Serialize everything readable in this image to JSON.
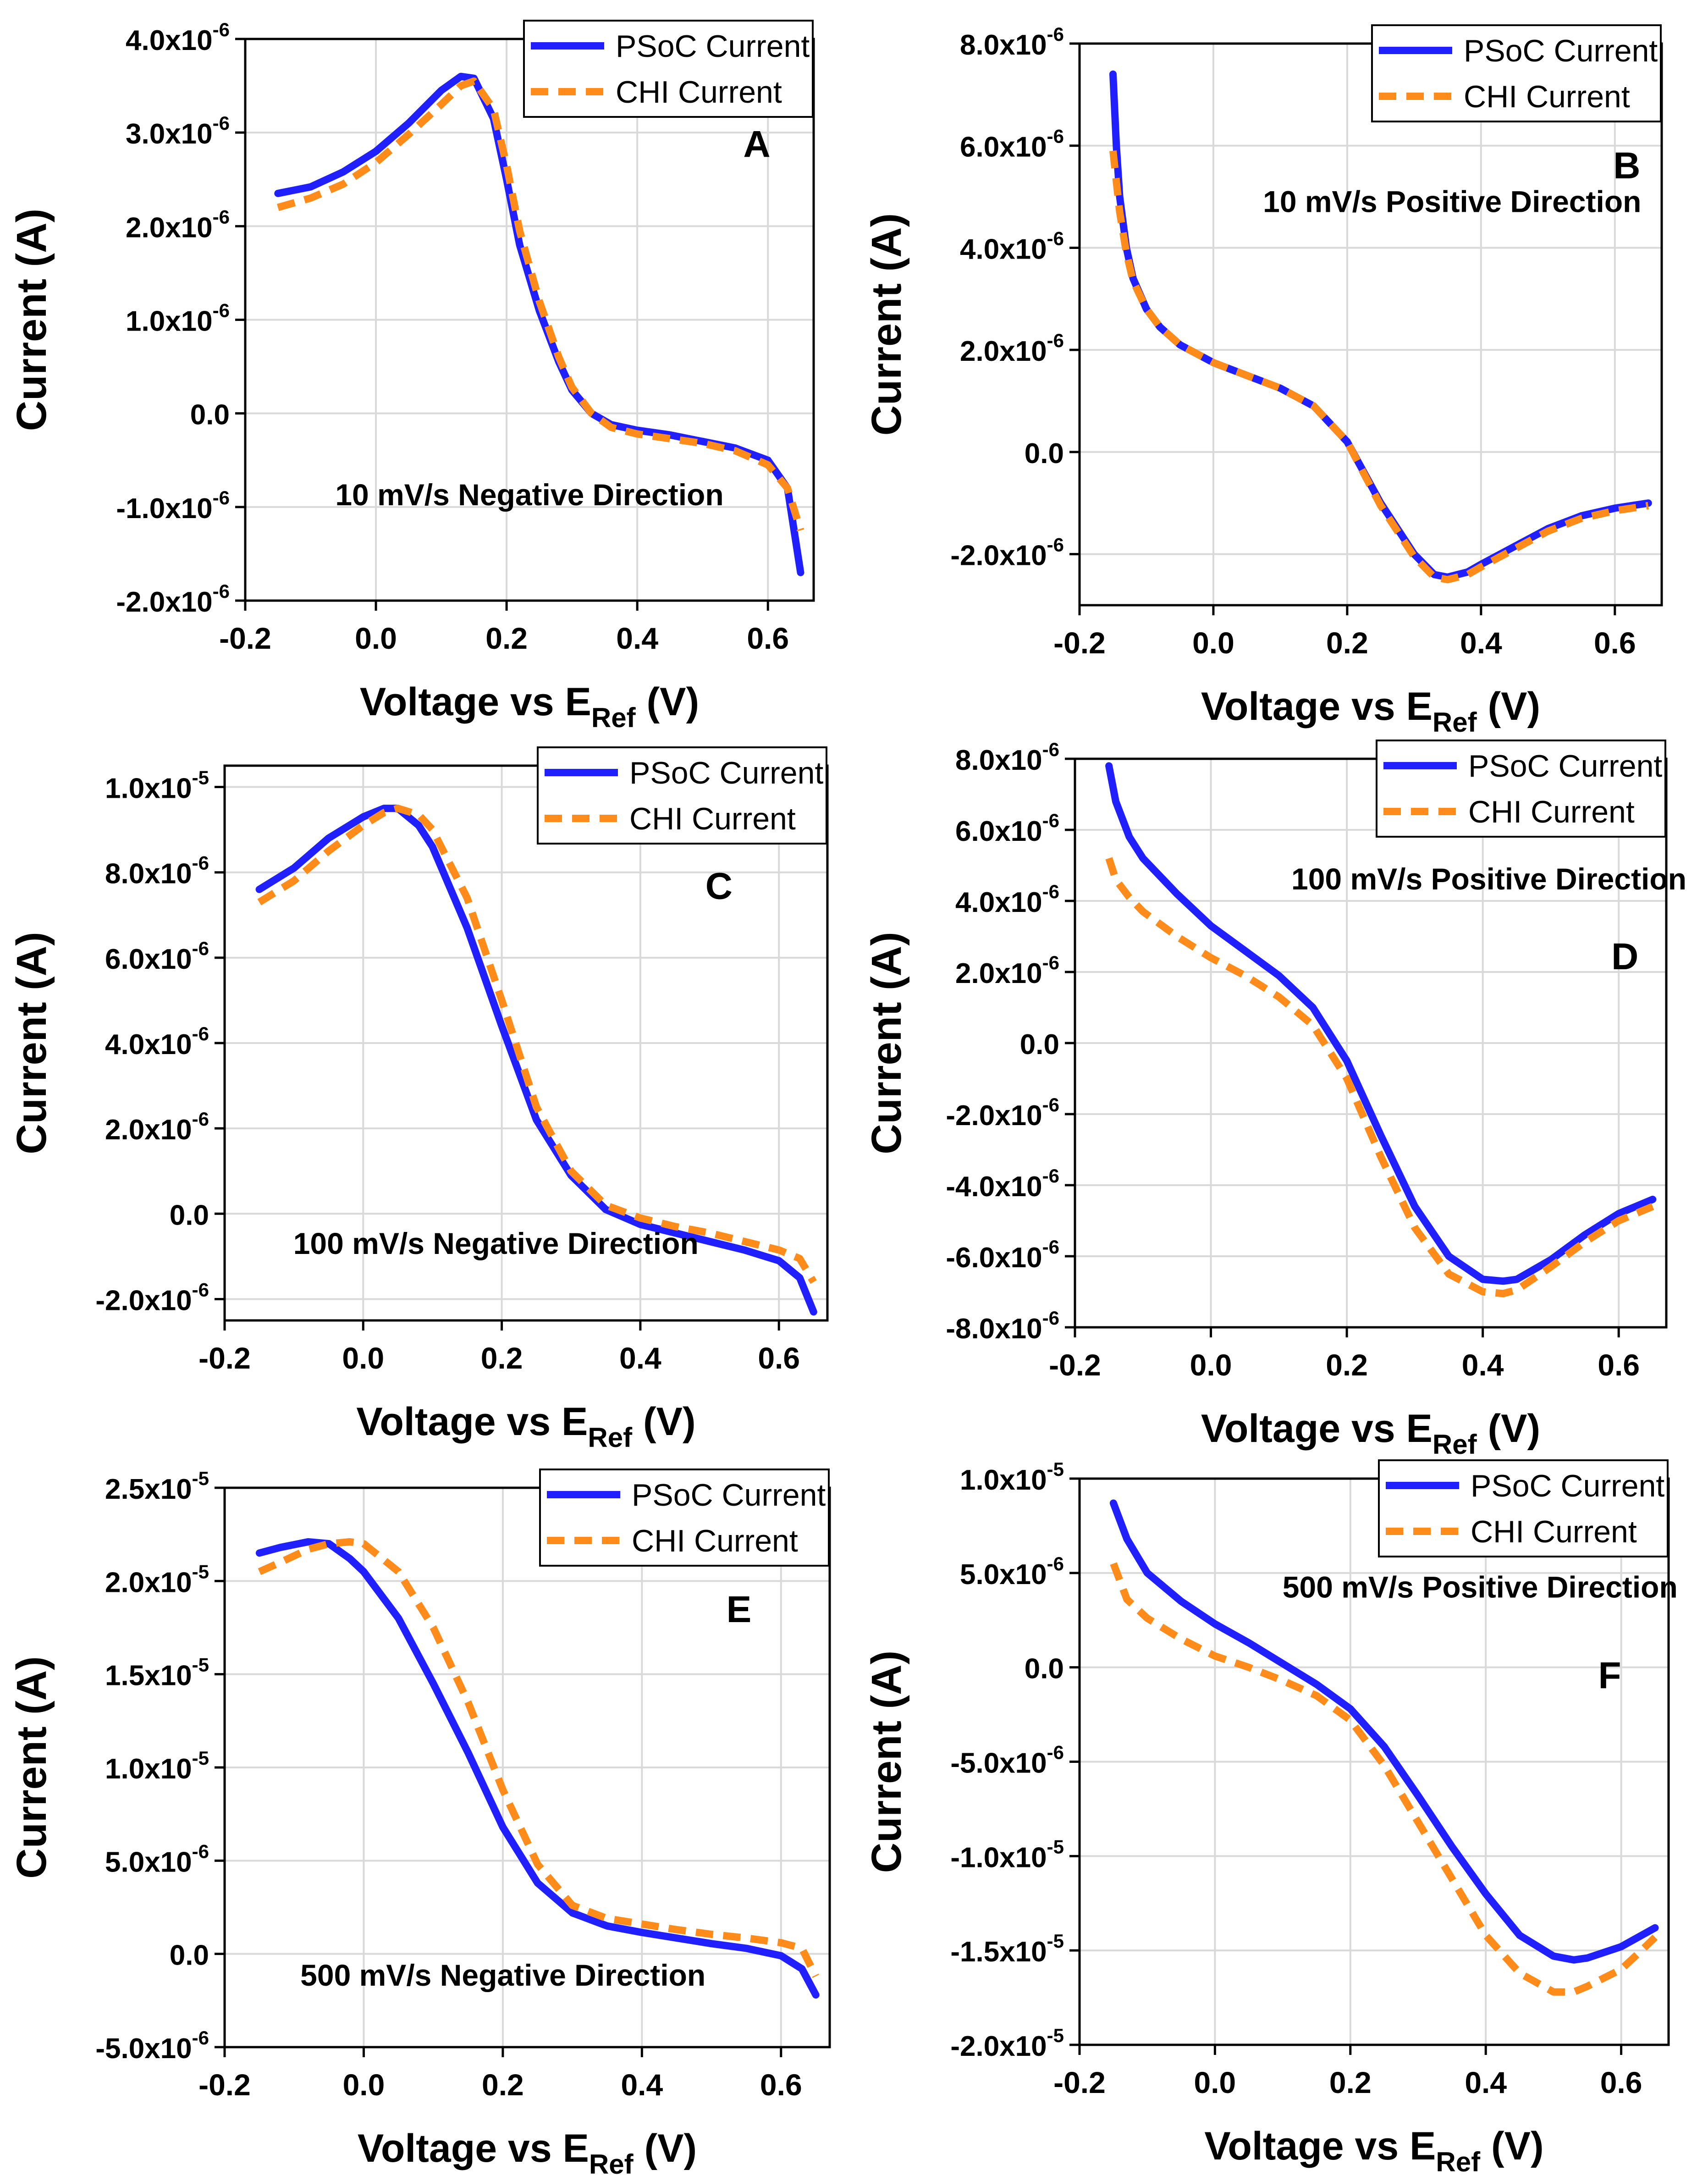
{
  "colors": {
    "psoc": "#1f1fff",
    "chi": "#ff8c1a",
    "grid": "#d9d9d9",
    "axis": "#000000"
  },
  "chart_data": [
    {
      "id": "A",
      "type": "line",
      "panel_label": "A",
      "annotation": "10 mV/s Negative Direction",
      "xlabel_main": "Voltage vs E",
      "xlabel_sub": "Ref",
      "xlabel_end": " (V)",
      "ylabel": "Current (A)",
      "xlim": [
        -0.2,
        0.67
      ],
      "ylim": [
        -2e-06,
        4e-06
      ],
      "x_ticks": [
        -0.2,
        0.0,
        0.2,
        0.4,
        0.6
      ],
      "x_tick_labels": [
        "-0.2",
        "0.0",
        "0.2",
        "0.4",
        "0.6"
      ],
      "y_ticks": [
        -2e-06,
        -1e-06,
        0.0,
        1e-06,
        2e-06,
        3e-06,
        4e-06
      ],
      "y_tick_mantissa": [
        "-2.0x10",
        "-1.0x10",
        "0.0",
        "1.0x10",
        "2.0x10",
        "3.0x10",
        "4.0x10"
      ],
      "y_tick_exp": [
        "-6",
        "-6",
        "",
        "-6",
        "-6",
        "-6",
        "-6"
      ],
      "grid": true,
      "legend_position": "top-right",
      "series": [
        {
          "name": "PSoC Current",
          "style": "solid",
          "x": [
            -0.15,
            -0.1,
            -0.05,
            0.0,
            0.05,
            0.1,
            0.13,
            0.15,
            0.18,
            0.2,
            0.22,
            0.25,
            0.28,
            0.3,
            0.33,
            0.36,
            0.4,
            0.45,
            0.5,
            0.55,
            0.6,
            0.63,
            0.65
          ],
          "y": [
            2.35e-06,
            2.42e-06,
            2.58e-06,
            2.8e-06,
            3.1e-06,
            3.45e-06,
            3.6e-06,
            3.58e-06,
            3.15e-06,
            2.5e-06,
            1.8e-06,
            1.1e-06,
            5.5e-07,
            2.5e-07,
            0.0,
            -1.2e-07,
            -1.8e-07,
            -2.3e-07,
            -3e-07,
            -3.7e-07,
            -5e-07,
            -8e-07,
            -1.7e-06
          ]
        },
        {
          "name": "CHI Current",
          "style": "dashed",
          "x": [
            -0.15,
            -0.1,
            -0.05,
            0.0,
            0.05,
            0.1,
            0.13,
            0.15,
            0.18,
            0.2,
            0.22,
            0.25,
            0.28,
            0.3,
            0.33,
            0.36,
            0.4,
            0.45,
            0.5,
            0.55,
            0.6,
            0.63,
            0.65
          ],
          "y": [
            2.2e-06,
            2.3e-06,
            2.45e-06,
            2.68e-06,
            2.98e-06,
            3.3e-06,
            3.5e-06,
            3.55e-06,
            3.25e-06,
            2.65e-06,
            1.95e-06,
            1.2e-06,
            6e-07,
            2.8e-07,
            0.0,
            -1.5e-07,
            -2.2e-07,
            -2.7e-07,
            -3.2e-07,
            -4e-07,
            -5.5e-07,
            -8e-07,
            -1.25e-06
          ]
        }
      ]
    },
    {
      "id": "B",
      "type": "line",
      "panel_label": "B",
      "annotation": "10 mV/s Positive Direction",
      "xlabel_main": "Voltage vs E",
      "xlabel_sub": "Ref",
      "xlabel_end": " (V)",
      "ylabel": "Current (A)",
      "xlim": [
        -0.2,
        0.67
      ],
      "ylim": [
        -3e-06,
        8e-06
      ],
      "x_ticks": [
        -0.2,
        0.0,
        0.2,
        0.4,
        0.6
      ],
      "x_tick_labels": [
        "-0.2",
        "0.0",
        "0.2",
        "0.4",
        "0.6"
      ],
      "y_ticks": [
        -2e-06,
        0.0,
        2e-06,
        4e-06,
        6e-06,
        8e-06
      ],
      "y_tick_mantissa": [
        "-2.0x10",
        "0.0",
        "2.0x10",
        "4.0x10",
        "6.0x10",
        "8.0x10"
      ],
      "y_tick_exp": [
        "-6",
        "",
        "-6",
        "-6",
        "-6",
        "-6"
      ],
      "grid": true,
      "legend_position": "top-right",
      "series": [
        {
          "name": "PSoC Current",
          "style": "solid",
          "x": [
            -0.15,
            -0.145,
            -0.14,
            -0.13,
            -0.12,
            -0.1,
            -0.08,
            -0.05,
            0.0,
            0.05,
            0.1,
            0.15,
            0.2,
            0.25,
            0.3,
            0.33,
            0.35,
            0.38,
            0.4,
            0.45,
            0.5,
            0.55,
            0.6,
            0.65
          ],
          "y": [
            7.4e-06,
            6e-06,
            5e-06,
            4e-06,
            3.4e-06,
            2.8e-06,
            2.45e-06,
            2.1e-06,
            1.75e-06,
            1.5e-06,
            1.25e-06,
            9e-07,
            2e-07,
            -1e-06,
            -2e-06,
            -2.4e-06,
            -2.45e-06,
            -2.35e-06,
            -2.2e-06,
            -1.85e-06,
            -1.5e-06,
            -1.25e-06,
            -1.1e-06,
            -1e-06
          ]
        },
        {
          "name": "CHI Current",
          "style": "dashed",
          "x": [
            -0.15,
            -0.145,
            -0.14,
            -0.13,
            -0.12,
            -0.1,
            -0.08,
            -0.05,
            0.0,
            0.05,
            0.1,
            0.15,
            0.2,
            0.25,
            0.3,
            0.33,
            0.35,
            0.38,
            0.4,
            0.45,
            0.5,
            0.55,
            0.6,
            0.65
          ],
          "y": [
            5.9e-06,
            5.3e-06,
            4.7e-06,
            3.9e-06,
            3.35e-06,
            2.8e-06,
            2.45e-06,
            2.1e-06,
            1.75e-06,
            1.5e-06,
            1.25e-06,
            9e-07,
            2e-07,
            -1.05e-06,
            -2.05e-06,
            -2.45e-06,
            -2.5e-06,
            -2.4e-06,
            -2.25e-06,
            -1.9e-06,
            -1.55e-06,
            -1.3e-06,
            -1.15e-06,
            -1.05e-06
          ]
        }
      ]
    },
    {
      "id": "C",
      "type": "line",
      "panel_label": "C",
      "annotation": "100 mV/s Negative Direction",
      "xlabel_main": "Voltage vs E",
      "xlabel_sub": "Ref",
      "xlabel_end": " (V)",
      "ylabel": "Current (A)",
      "xlim": [
        -0.2,
        0.67
      ],
      "ylim": [
        -2.5e-06,
        1.05e-05
      ],
      "x_ticks": [
        -0.2,
        0.0,
        0.2,
        0.4,
        0.6
      ],
      "x_tick_labels": [
        "-0.2",
        "0.0",
        "0.2",
        "0.4",
        "0.6"
      ],
      "y_ticks": [
        -2e-06,
        0.0,
        2e-06,
        4e-06,
        6e-06,
        8e-06,
        1e-05
      ],
      "y_tick_mantissa": [
        "-2.0x10",
        "0.0",
        "2.0x10",
        "4.0x10",
        "6.0x10",
        "8.0x10",
        "1.0x10"
      ],
      "y_tick_exp": [
        "-6",
        "",
        "-6",
        "-6",
        "-6",
        "-6",
        "-5"
      ],
      "grid": true,
      "legend_position": "top-right",
      "series": [
        {
          "name": "PSoC Current",
          "style": "solid",
          "x": [
            -0.15,
            -0.1,
            -0.05,
            0.0,
            0.03,
            0.05,
            0.08,
            0.1,
            0.15,
            0.2,
            0.25,
            0.3,
            0.35,
            0.4,
            0.45,
            0.5,
            0.55,
            0.6,
            0.63,
            0.65
          ],
          "y": [
            7.6e-06,
            8.1e-06,
            8.8e-06,
            9.3e-06,
            9.5e-06,
            9.5e-06,
            9.1e-06,
            8.6e-06,
            6.7e-06,
            4.4e-06,
            2.2e-06,
            9e-07,
            1e-07,
            -2.5e-07,
            -4.5e-07,
            -6.5e-07,
            -8.5e-07,
            -1.1e-06,
            -1.5e-06,
            -2.3e-06
          ]
        },
        {
          "name": "CHI Current",
          "style": "dashed",
          "x": [
            -0.15,
            -0.1,
            -0.05,
            0.0,
            0.03,
            0.05,
            0.08,
            0.1,
            0.15,
            0.2,
            0.25,
            0.3,
            0.35,
            0.4,
            0.45,
            0.5,
            0.55,
            0.6,
            0.63,
            0.65
          ],
          "y": [
            7.3e-06,
            7.8e-06,
            8.5e-06,
            9.1e-06,
            9.4e-06,
            9.5e-06,
            9.35e-06,
            9e-06,
            7.4e-06,
            5e-06,
            2.5e-06,
            1e-06,
            2e-07,
            -1e-07,
            -3e-07,
            -4.5e-07,
            -6.5e-07,
            -8.5e-07,
            -1.05e-06,
            -1.6e-06
          ]
        }
      ]
    },
    {
      "id": "D",
      "type": "line",
      "panel_label": "D",
      "annotation": "100 mV/s Positive Direction",
      "xlabel_main": "Voltage vs E",
      "xlabel_sub": "Ref",
      "xlabel_end": " (V)",
      "ylabel": "Current (A)",
      "xlim": [
        -0.2,
        0.67
      ],
      "ylim": [
        -8e-06,
        8e-06
      ],
      "x_ticks": [
        -0.2,
        0.0,
        0.2,
        0.4,
        0.6
      ],
      "x_tick_labels": [
        "-0.2",
        "0.0",
        "0.2",
        "0.4",
        "0.6"
      ],
      "y_ticks": [
        -8e-06,
        -6e-06,
        -4e-06,
        -2e-06,
        0.0,
        2e-06,
        4e-06,
        6e-06,
        8e-06
      ],
      "y_tick_mantissa": [
        "-8.0x10",
        "-6.0x10",
        "-4.0x10",
        "-2.0x10",
        "0.0",
        "2.0x10",
        "4.0x10",
        "6.0x10",
        "8.0x10"
      ],
      "y_tick_exp": [
        "-6",
        "-6",
        "-6",
        "-6",
        "",
        "-6",
        "-6",
        "-6",
        "-6"
      ],
      "grid": true,
      "legend_position": "top-right",
      "series": [
        {
          "name": "PSoC Current",
          "style": "solid",
          "x": [
            -0.15,
            -0.14,
            -0.12,
            -0.1,
            -0.05,
            0.0,
            0.05,
            0.1,
            0.15,
            0.2,
            0.25,
            0.3,
            0.35,
            0.4,
            0.43,
            0.45,
            0.5,
            0.55,
            0.6,
            0.65
          ],
          "y": [
            7.8e-06,
            6.8e-06,
            5.8e-06,
            5.2e-06,
            4.2e-06,
            3.3e-06,
            2.6e-06,
            1.9e-06,
            1e-06,
            -5e-07,
            -2.6e-06,
            -4.6e-06,
            -6e-06,
            -6.65e-06,
            -6.7e-06,
            -6.65e-06,
            -6.1e-06,
            -5.4e-06,
            -4.8e-06,
            -4.4e-06
          ]
        },
        {
          "name": "CHI Current",
          "style": "dashed",
          "x": [
            -0.15,
            -0.14,
            -0.12,
            -0.1,
            -0.05,
            0.0,
            0.05,
            0.1,
            0.15,
            0.2,
            0.25,
            0.3,
            0.35,
            0.4,
            0.43,
            0.45,
            0.5,
            0.55,
            0.6,
            0.65
          ],
          "y": [
            5.2e-06,
            4.6e-06,
            4.1e-06,
            3.7e-06,
            3e-06,
            2.4e-06,
            1.9e-06,
            1.3e-06,
            5e-07,
            -1e-06,
            -3.2e-06,
            -5.2e-06,
            -6.5e-06,
            -7e-06,
            -7.05e-06,
            -6.95e-06,
            -6.3e-06,
            -5.6e-06,
            -5e-06,
            -4.6e-06
          ]
        }
      ]
    },
    {
      "id": "E",
      "type": "line",
      "panel_label": "E",
      "annotation": "500 mV/s Negative Direction",
      "xlabel_main": "Voltage vs E",
      "xlabel_sub": "Ref",
      "xlabel_end": " (V)",
      "ylabel": "Current (A)",
      "xlim": [
        -0.2,
        0.67
      ],
      "ylim": [
        -5e-06,
        2.5e-05
      ],
      "x_ticks": [
        -0.2,
        0.0,
        0.2,
        0.4,
        0.6
      ],
      "x_tick_labels": [
        "-0.2",
        "0.0",
        "0.2",
        "0.4",
        "0.6"
      ],
      "y_ticks": [
        -5e-06,
        0.0,
        5e-06,
        1e-05,
        1.5e-05,
        2e-05,
        2.5e-05
      ],
      "y_tick_mantissa": [
        "-5.0x10",
        "0.0",
        "5.0x10",
        "1.0x10",
        "1.5x10",
        "2.0x10",
        "2.5x10"
      ],
      "y_tick_exp": [
        "-6",
        "",
        "-6",
        "-5",
        "-5",
        "-5",
        "-5"
      ],
      "grid": true,
      "legend_position": "top-right",
      "series": [
        {
          "name": "PSoC Current",
          "style": "solid",
          "x": [
            -0.15,
            -0.12,
            -0.08,
            -0.05,
            -0.02,
            0.0,
            0.05,
            0.1,
            0.15,
            0.2,
            0.25,
            0.3,
            0.35,
            0.4,
            0.45,
            0.5,
            0.55,
            0.6,
            0.63,
            0.65
          ],
          "y": [
            2.15e-05,
            2.18e-05,
            2.21e-05,
            2.2e-05,
            2.12e-05,
            2.05e-05,
            1.8e-05,
            1.45e-05,
            1.08e-05,
            6.8e-06,
            3.8e-06,
            2.2e-06,
            1.5e-06,
            1.15e-06,
            8.5e-07,
            5.5e-07,
            3e-07,
            -1e-07,
            -8e-07,
            -2.2e-06
          ]
        },
        {
          "name": "CHI Current",
          "style": "dashed",
          "x": [
            -0.15,
            -0.12,
            -0.08,
            -0.05,
            -0.02,
            0.0,
            0.05,
            0.1,
            0.15,
            0.2,
            0.25,
            0.3,
            0.35,
            0.4,
            0.45,
            0.5,
            0.55,
            0.6,
            0.63,
            0.65
          ],
          "y": [
            2.05e-05,
            2.1e-05,
            2.17e-05,
            2.2e-05,
            2.21e-05,
            2.2e-05,
            2.05e-05,
            1.75e-05,
            1.35e-05,
            8.8e-06,
            4.8e-06,
            2.6e-06,
            1.9e-06,
            1.6e-06,
            1.3e-06,
            1.05e-06,
            8.5e-07,
            6e-07,
            3e-07,
            -1.2e-06
          ]
        }
      ]
    },
    {
      "id": "F",
      "type": "line",
      "panel_label": "F",
      "annotation": "500 mV/s Positive Direction",
      "xlabel_main": "Voltage vs E",
      "xlabel_sub": "Ref",
      "xlabel_end": " (V)",
      "ylabel": "Current (A)",
      "xlim": [
        -0.2,
        0.67
      ],
      "ylim": [
        -2e-05,
        1e-05
      ],
      "x_ticks": [
        -0.2,
        0.0,
        0.2,
        0.4,
        0.6
      ],
      "x_tick_labels": [
        "-0.2",
        "0.0",
        "0.2",
        "0.4",
        "0.6"
      ],
      "y_ticks": [
        -2e-05,
        -1.5e-05,
        -1e-05,
        -5e-06,
        0.0,
        5e-06,
        1e-05
      ],
      "y_tick_mantissa": [
        "-2.0x10",
        "-1.5x10",
        "-1.0x10",
        "-5.0x10",
        "0.0",
        "5.0x10",
        "1.0x10"
      ],
      "y_tick_exp": [
        "-5",
        "-5",
        "-5",
        "-6",
        "",
        "-6",
        "-5"
      ],
      "grid": true,
      "legend_position": "top-right",
      "series": [
        {
          "name": "PSoC Current",
          "style": "solid",
          "x": [
            -0.15,
            -0.13,
            -0.1,
            -0.05,
            0.0,
            0.05,
            0.1,
            0.15,
            0.2,
            0.25,
            0.3,
            0.35,
            0.4,
            0.45,
            0.5,
            0.53,
            0.55,
            0.6,
            0.63,
            0.65
          ],
          "y": [
            8.7e-06,
            6.8e-06,
            5e-06,
            3.5e-06,
            2.3e-06,
            1.3e-06,
            2e-07,
            -9e-07,
            -2.2e-06,
            -4.2e-06,
            -6.8e-06,
            -9.5e-06,
            -1.2e-05,
            -1.42e-05,
            -1.53e-05,
            -1.55e-05,
            -1.54e-05,
            -1.48e-05,
            -1.42e-05,
            -1.38e-05
          ]
        },
        {
          "name": "CHI Current",
          "style": "dashed",
          "x": [
            -0.15,
            -0.13,
            -0.1,
            -0.05,
            0.0,
            0.05,
            0.1,
            0.15,
            0.2,
            0.25,
            0.3,
            0.35,
            0.4,
            0.45,
            0.5,
            0.53,
            0.55,
            0.6,
            0.63,
            0.65
          ],
          "y": [
            5.5e-06,
            3.6e-06,
            2.6e-06,
            1.5e-06,
            6e-07,
            0.0,
            -7e-07,
            -1.5e-06,
            -2.8e-06,
            -5.2e-06,
            -8.2e-06,
            -1.12e-05,
            -1.42e-05,
            -1.62e-05,
            -1.72e-05,
            -1.72e-05,
            -1.69e-05,
            -1.6e-05,
            -1.5e-05,
            -1.43e-05
          ]
        }
      ]
    }
  ]
}
